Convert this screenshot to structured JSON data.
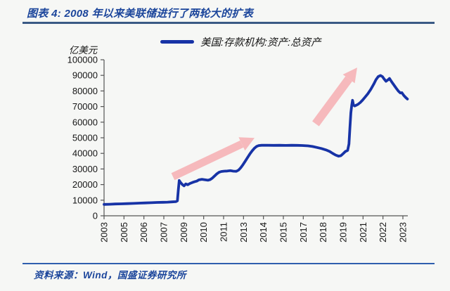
{
  "header": {
    "title": "图表 4: 2008 年以来美联储进行了两轮大的扩表"
  },
  "legend": {
    "label": "美国:存款机构:资产:总资产",
    "line_color": "#1733a6"
  },
  "footer": {
    "source": "资料来源：Wind，国盛证券研究所"
  },
  "colors": {
    "accent_blue": "#1b459b",
    "series_line": "#1733a6",
    "arrow_pink": "#f6b9bc",
    "axis": "#555555",
    "background": "#f6f7f5"
  },
  "chart_data": {
    "type": "line",
    "title": "2008 年以来美联储进行了两轮大的扩表",
    "unit_label": "亿美元",
    "legend": [
      "美国:存款机构:资产:总资产"
    ],
    "legend_position": "top-center",
    "grid": false,
    "x_axis": {
      "tick_labels": [
        "2003",
        "2005",
        "2006",
        "2007",
        "2009",
        "2010",
        "2011",
        "2013",
        "2014",
        "2015",
        "2017",
        "2018",
        "2019",
        "2021",
        "2022",
        "2023"
      ],
      "label_rotation_deg": -90
    },
    "y_axis": {
      "label": "亿美元",
      "range": [
        0,
        100000
      ],
      "ticks": [
        0,
        10000,
        20000,
        30000,
        40000,
        50000,
        60000,
        70000,
        80000,
        90000,
        100000
      ],
      "tick_labels": [
        "0",
        "10000",
        "20000",
        "30000",
        "40000",
        "50000",
        "60000",
        "70000",
        "80000",
        "90000",
        "100000"
      ]
    },
    "series": [
      {
        "name": "美国:存款机构:资产:总资产",
        "color": "#1733a6",
        "points": [
          [
            2003.75,
            7300
          ],
          [
            2004.1,
            7400
          ],
          [
            2004.5,
            7550
          ],
          [
            2004.9,
            7650
          ],
          [
            2005.3,
            7800
          ],
          [
            2005.7,
            7950
          ],
          [
            2006.1,
            8100
          ],
          [
            2006.5,
            8250
          ],
          [
            2006.9,
            8400
          ],
          [
            2007.3,
            8550
          ],
          [
            2007.7,
            8650
          ],
          [
            2008.0,
            8750
          ],
          [
            2008.3,
            8900
          ],
          [
            2008.55,
            9050
          ],
          [
            2008.66,
            9600
          ],
          [
            2008.72,
            16500
          ],
          [
            2008.78,
            22600
          ],
          [
            2008.88,
            21200
          ],
          [
            2009.0,
            19900
          ],
          [
            2009.1,
            19200
          ],
          [
            2009.22,
            20400
          ],
          [
            2009.35,
            19900
          ],
          [
            2009.5,
            20700
          ],
          [
            2009.65,
            21300
          ],
          [
            2009.8,
            21800
          ],
          [
            2009.95,
            22200
          ],
          [
            2010.1,
            23000
          ],
          [
            2010.3,
            23400
          ],
          [
            2010.5,
            23100
          ],
          [
            2010.7,
            22800
          ],
          [
            2010.85,
            23200
          ],
          [
            2011.0,
            24200
          ],
          [
            2011.15,
            25600
          ],
          [
            2011.3,
            26900
          ],
          [
            2011.45,
            27900
          ],
          [
            2011.6,
            28400
          ],
          [
            2011.8,
            28600
          ],
          [
            2012.0,
            28700
          ],
          [
            2012.2,
            28900
          ],
          [
            2012.4,
            28600
          ],
          [
            2012.6,
            28500
          ],
          [
            2012.75,
            29300
          ],
          [
            2012.9,
            30800
          ],
          [
            2013.05,
            32800
          ],
          [
            2013.2,
            35000
          ],
          [
            2013.35,
            37300
          ],
          [
            2013.5,
            39500
          ],
          [
            2013.65,
            41500
          ],
          [
            2013.8,
            43200
          ],
          [
            2013.95,
            44400
          ],
          [
            2014.1,
            45000
          ],
          [
            2014.3,
            45200
          ],
          [
            2014.7,
            45200
          ],
          [
            2015.1,
            45150
          ],
          [
            2015.5,
            45200
          ],
          [
            2015.9,
            45100
          ],
          [
            2016.3,
            45200
          ],
          [
            2016.7,
            45150
          ],
          [
            2017.0,
            45050
          ],
          [
            2017.4,
            44800
          ],
          [
            2017.7,
            44400
          ],
          [
            2018.0,
            43800
          ],
          [
            2018.3,
            43100
          ],
          [
            2018.6,
            42200
          ],
          [
            2018.85,
            41200
          ],
          [
            2019.05,
            40000
          ],
          [
            2019.25,
            38900
          ],
          [
            2019.45,
            38200
          ],
          [
            2019.6,
            38500
          ],
          [
            2019.75,
            39800
          ],
          [
            2019.9,
            41200
          ],
          [
            2020.05,
            41900
          ],
          [
            2020.14,
            46000
          ],
          [
            2020.2,
            56000
          ],
          [
            2020.27,
            66000
          ],
          [
            2020.33,
            71000
          ],
          [
            2020.38,
            74000
          ],
          [
            2020.44,
            71000
          ],
          [
            2020.52,
            70400
          ],
          [
            2020.62,
            70800
          ],
          [
            2020.75,
            71500
          ],
          [
            2020.9,
            72600
          ],
          [
            2021.05,
            74100
          ],
          [
            2021.2,
            75800
          ],
          [
            2021.4,
            78200
          ],
          [
            2021.6,
            81000
          ],
          [
            2021.8,
            84400
          ],
          [
            2021.95,
            87300
          ],
          [
            2022.1,
            89200
          ],
          [
            2022.25,
            89900
          ],
          [
            2022.38,
            89200
          ],
          [
            2022.5,
            87600
          ],
          [
            2022.62,
            86200
          ],
          [
            2022.75,
            87100
          ],
          [
            2022.85,
            88000
          ],
          [
            2023.0,
            85800
          ],
          [
            2023.15,
            83800
          ],
          [
            2023.3,
            81800
          ],
          [
            2023.45,
            79900
          ],
          [
            2023.58,
            78700
          ],
          [
            2023.68,
            78900
          ],
          [
            2023.8,
            77200
          ],
          [
            2023.92,
            76000
          ],
          [
            2024.05,
            74800
          ]
        ]
      }
    ],
    "annotations": {
      "arrows": [
        {
          "name": "first-expansion-arrow",
          "from": [
            2008.36,
            25100
          ],
          "to": [
            2013.82,
            49900
          ],
          "color": "#f6b9bc",
          "shaft_width": 11
        },
        {
          "name": "second-expansion-arrow",
          "from": [
            2017.91,
            59000
          ],
          "to": [
            2020.69,
            95000
          ],
          "color": "#f6b9bc",
          "shaft_width": 12
        }
      ]
    }
  }
}
